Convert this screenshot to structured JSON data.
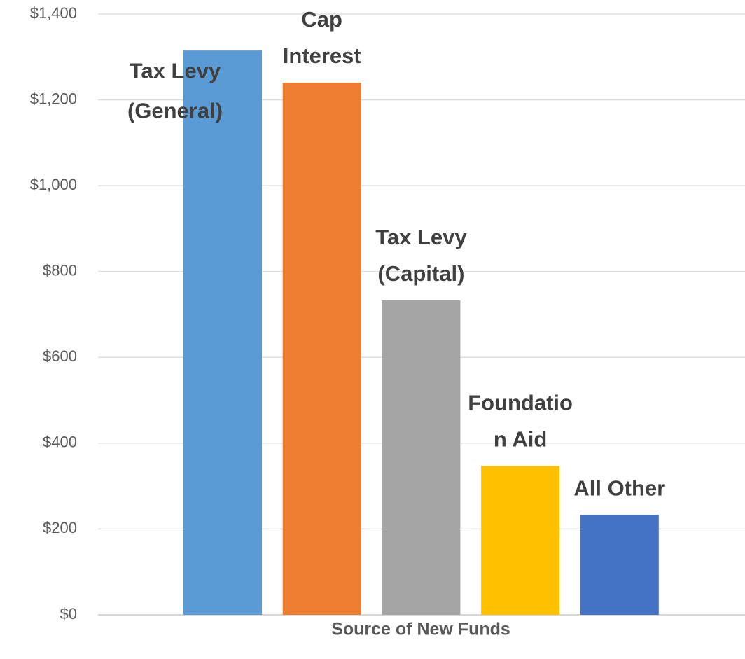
{
  "chart_data": {
    "type": "bar",
    "x_axis_title": "Source of New Funds",
    "categories": [
      [
        "Tax Levy",
        "(General)"
      ],
      [
        "Cap",
        "Interest"
      ],
      [
        "Tax Levy",
        "(Capital)"
      ],
      [
        "Foundatio",
        "n Aid"
      ],
      [
        "All Other"
      ]
    ],
    "values": [
      1315,
      1240,
      733,
      347,
      233
    ],
    "colors": [
      "#5b9bd5",
      "#ed7d31",
      "#a5a5a5",
      "#ffc000",
      "#4472c4"
    ],
    "ylim": [
      0,
      1400
    ],
    "yticks": [
      {
        "value": 0,
        "label": "$0"
      },
      {
        "value": 200,
        "label": "$200"
      },
      {
        "value": 400,
        "label": "$400"
      },
      {
        "value": 600,
        "label": "$600"
      },
      {
        "value": 800,
        "label": "$800"
      },
      {
        "value": 1000,
        "label": "$1,000"
      },
      {
        "value": 1200,
        "label": "$1,200"
      },
      {
        "value": 1400,
        "label": "$1,400"
      }
    ],
    "grid": true
  }
}
